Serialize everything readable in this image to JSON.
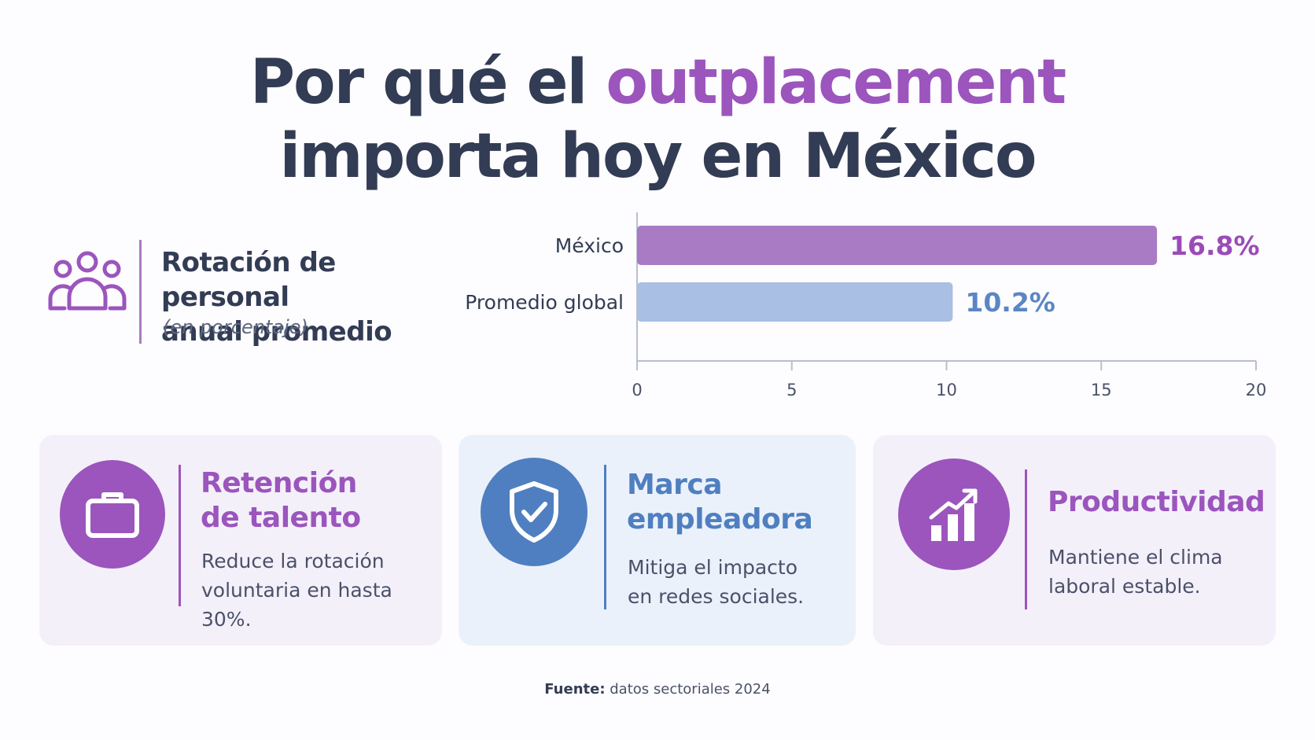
{
  "title": {
    "line1_prefix": "Por qué el ",
    "line1_accent": "outplacement",
    "line2": "importa hoy en México"
  },
  "stat": {
    "icon": "people-group-icon",
    "title_line1": "Rotación de personal",
    "title_line2": "anual promedio",
    "subtitle": "(en porcentaje)"
  },
  "chart_data": {
    "type": "bar",
    "orientation": "horizontal",
    "categories": [
      "México",
      "Promedio global"
    ],
    "values": [
      16.8,
      10.2
    ],
    "value_labels": [
      "16.8%",
      "10.2%"
    ],
    "bar_colors": [
      "#a87bc4",
      "#a9bfe3"
    ],
    "label_colors": [
      "#9b4bb8",
      "#5b86c4"
    ],
    "xlim": [
      0,
      20
    ],
    "xticks": [
      0,
      5,
      10,
      15,
      20
    ],
    "grid": false,
    "legend": "none"
  },
  "cards": [
    {
      "icon": "briefcase-icon",
      "title_line1": "Retención",
      "title_line2": "de talento",
      "text_line1": "Reduce la rotación",
      "text_line2": "voluntaria en hasta 30%.",
      "color": "#9b55bd"
    },
    {
      "icon": "shield-check-icon",
      "title_line1": "Marca",
      "title_line2": "empleadora",
      "text_line1": "Mitiga el impacto",
      "text_line2": "en redes sociales.",
      "color": "#4f7fc0"
    },
    {
      "icon": "growth-chart-icon",
      "title_line1": "Productividad",
      "text_line1": "Mantiene el clima",
      "text_line2": "laboral estable.",
      "color": "#9b55bd"
    }
  ],
  "source": {
    "label": "Fuente:",
    "text": " datos sectoriales 2024"
  }
}
